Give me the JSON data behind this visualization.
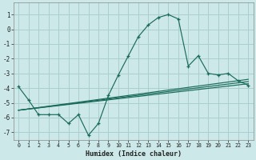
{
  "xlabel": "Humidex (Indice chaleur)",
  "xlim": [
    -0.5,
    23.5
  ],
  "ylim": [
    -7.5,
    1.8
  ],
  "yticks": [
    1,
    0,
    -1,
    -2,
    -3,
    -4,
    -5,
    -6,
    -7
  ],
  "xticks": [
    0,
    1,
    2,
    3,
    4,
    5,
    6,
    7,
    8,
    9,
    10,
    11,
    12,
    13,
    14,
    15,
    16,
    17,
    18,
    19,
    20,
    21,
    22,
    23
  ],
  "bg_color": "#cce8e8",
  "grid_color": "#aacece",
  "line_color": "#1a6b5a",
  "main_x": [
    0,
    1,
    2,
    3,
    4,
    5,
    6,
    7,
    8,
    9,
    10,
    11,
    12,
    13,
    14,
    15,
    16,
    17,
    18,
    19,
    20,
    21,
    22,
    23
  ],
  "main_y": [
    -3.9,
    -4.8,
    -5.8,
    -5.8,
    -5.8,
    -6.4,
    -5.8,
    -7.2,
    -6.4,
    -4.5,
    -3.1,
    -1.8,
    -0.5,
    0.3,
    0.8,
    1.0,
    0.7,
    -2.5,
    -1.8,
    -3.0,
    -3.1,
    -3.0,
    -3.5,
    -3.8
  ],
  "line2_x": [
    0,
    23
  ],
  "line2_y": [
    -5.5,
    -3.7
  ],
  "line3_x": [
    0,
    23
  ],
  "line3_y": [
    -5.5,
    -3.55
  ],
  "line4_x": [
    0,
    23
  ],
  "line4_y": [
    -5.5,
    -3.4
  ]
}
